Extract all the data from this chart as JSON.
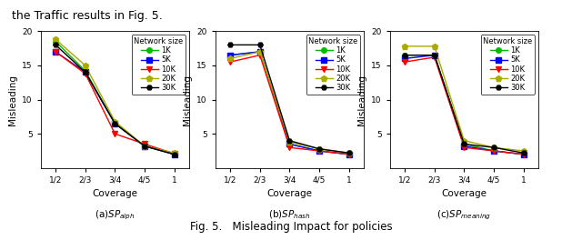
{
  "x_ticks": [
    "1/2",
    "2/3",
    "3/4",
    "4/5",
    "1"
  ],
  "x_vals": [
    0,
    1,
    2,
    3,
    4
  ],
  "subplot_a": {
    "title": "(a)$SP_{alph}$",
    "data": {
      "1K": [
        18.5,
        14.2,
        6.5,
        3.2,
        2.0
      ],
      "5K": [
        17.0,
        14.0,
        6.5,
        3.2,
        2.0
      ],
      "10K": [
        17.0,
        13.8,
        5.0,
        3.5,
        2.1
      ],
      "20K": [
        18.8,
        15.0,
        6.8,
        3.2,
        2.2
      ],
      "30K": [
        18.0,
        14.0,
        6.5,
        3.2,
        2.0
      ]
    }
  },
  "subplot_b": {
    "title": "(b)$SP_{hash}$",
    "data": {
      "1K": [
        16.5,
        17.0,
        3.5,
        2.5,
        2.0
      ],
      "5K": [
        16.5,
        17.0,
        3.5,
        2.5,
        2.0
      ],
      "10K": [
        15.5,
        16.5,
        3.0,
        2.5,
        2.0
      ],
      "20K": [
        16.0,
        17.0,
        3.8,
        2.8,
        2.2
      ],
      "30K": [
        18.0,
        18.0,
        4.0,
        2.8,
        2.2
      ]
    }
  },
  "subplot_c": {
    "title": "(c)$SP_{meaning}$",
    "data": {
      "1K": [
        16.5,
        16.5,
        3.5,
        2.5,
        2.0
      ],
      "5K": [
        16.0,
        16.5,
        3.2,
        2.5,
        2.0
      ],
      "10K": [
        15.5,
        16.2,
        3.0,
        2.5,
        2.0
      ],
      "20K": [
        17.8,
        17.8,
        4.0,
        3.0,
        2.5
      ],
      "30K": [
        16.5,
        16.5,
        3.5,
        3.0,
        2.2
      ]
    }
  },
  "colors": {
    "1K": "#00bb00",
    "5K": "#0000ff",
    "10K": "#ff0000",
    "20K": "#aaaa00",
    "30K": "#000000"
  },
  "markers": {
    "1K": "o",
    "5K": "s",
    "10K": "v",
    "20K": "p",
    "30K": "H"
  },
  "msizes": {
    "1K": 4,
    "5K": 4,
    "10K": 4,
    "20K": 5,
    "30K": 4
  },
  "legend_title": "Network size",
  "ylabel": "Misleading",
  "xlabel": "Coverage",
  "ylim": [
    0,
    20
  ],
  "yticks": [
    5,
    10,
    15,
    20
  ],
  "fig_title": "Fig. 5.   Misleading Impact for policies",
  "header_text": "the Traffic results in Fig. 5."
}
